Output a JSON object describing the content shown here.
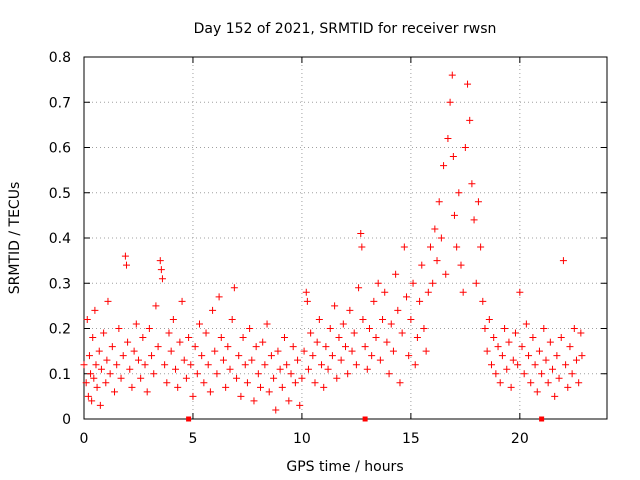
{
  "chart_data": {
    "type": "scatter",
    "title": "Day 152 of 2021, SRMTID for receiver rwsn",
    "xlabel": "GPS time / hours",
    "ylabel": "SRMTID / TECUs",
    "xlim": [
      0,
      24
    ],
    "ylim": [
      0,
      0.8
    ],
    "xticks": [
      0,
      5,
      10,
      15,
      20
    ],
    "xtick_labels": [
      "0",
      "5",
      "10",
      "15",
      "20"
    ],
    "yticks": [
      0,
      0.1,
      0.2,
      0.3,
      0.4,
      0.5,
      0.6,
      0.7,
      0.8
    ],
    "ytick_labels": [
      "0",
      "0.1",
      "0.2",
      "0.3",
      "0.4",
      "0.5",
      "0.6",
      "0.7",
      "0.8"
    ],
    "grid": true,
    "marker": "plus",
    "color": "#ff0000",
    "axis_markers_x": [
      4.8,
      12.9,
      21.0
    ],
    "series": [
      {
        "name": "SRMTID",
        "points": [
          [
            0.0,
            0.12
          ],
          [
            0.1,
            0.08
          ],
          [
            0.15,
            0.22
          ],
          [
            0.2,
            0.05
          ],
          [
            0.25,
            0.14
          ],
          [
            0.3,
            0.1
          ],
          [
            0.35,
            0.04
          ],
          [
            0.4,
            0.18
          ],
          [
            0.45,
            0.09
          ],
          [
            0.5,
            0.24
          ],
          [
            0.55,
            0.12
          ],
          [
            0.6,
            0.07
          ],
          [
            0.7,
            0.15
          ],
          [
            0.75,
            0.03
          ],
          [
            0.8,
            0.11
          ],
          [
            0.9,
            0.19
          ],
          [
            1.0,
            0.08
          ],
          [
            1.05,
            0.13
          ],
          [
            1.1,
            0.26
          ],
          [
            1.2,
            0.1
          ],
          [
            1.3,
            0.16
          ],
          [
            1.4,
            0.06
          ],
          [
            1.5,
            0.12
          ],
          [
            1.6,
            0.2
          ],
          [
            1.7,
            0.09
          ],
          [
            1.8,
            0.14
          ],
          [
            1.9,
            0.36
          ],
          [
            1.95,
            0.34
          ],
          [
            2.0,
            0.17
          ],
          [
            2.1,
            0.11
          ],
          [
            2.2,
            0.07
          ],
          [
            2.3,
            0.15
          ],
          [
            2.4,
            0.21
          ],
          [
            2.5,
            0.13
          ],
          [
            2.6,
            0.09
          ],
          [
            2.7,
            0.18
          ],
          [
            2.8,
            0.12
          ],
          [
            2.9,
            0.06
          ],
          [
            3.0,
            0.2
          ],
          [
            3.1,
            0.14
          ],
          [
            3.2,
            0.1
          ],
          [
            3.3,
            0.25
          ],
          [
            3.4,
            0.16
          ],
          [
            3.5,
            0.35
          ],
          [
            3.55,
            0.33
          ],
          [
            3.6,
            0.31
          ],
          [
            3.7,
            0.12
          ],
          [
            3.8,
            0.08
          ],
          [
            3.9,
            0.19
          ],
          [
            4.0,
            0.15
          ],
          [
            4.1,
            0.22
          ],
          [
            4.2,
            0.11
          ],
          [
            4.3,
            0.07
          ],
          [
            4.4,
            0.17
          ],
          [
            4.5,
            0.26
          ],
          [
            4.6,
            0.13
          ],
          [
            4.7,
            0.09
          ],
          [
            4.8,
            0.18
          ],
          [
            4.9,
            0.12
          ],
          [
            5.0,
            0.05
          ],
          [
            5.1,
            0.16
          ],
          [
            5.2,
            0.1
          ],
          [
            5.3,
            0.21
          ],
          [
            5.4,
            0.14
          ],
          [
            5.5,
            0.08
          ],
          [
            5.6,
            0.19
          ],
          [
            5.7,
            0.12
          ],
          [
            5.8,
            0.06
          ],
          [
            5.9,
            0.24
          ],
          [
            6.0,
            0.15
          ],
          [
            6.1,
            0.1
          ],
          [
            6.2,
            0.27
          ],
          [
            6.3,
            0.18
          ],
          [
            6.4,
            0.13
          ],
          [
            6.5,
            0.07
          ],
          [
            6.6,
            0.16
          ],
          [
            6.7,
            0.11
          ],
          [
            6.8,
            0.22
          ],
          [
            6.9,
            0.29
          ],
          [
            7.0,
            0.09
          ],
          [
            7.1,
            0.14
          ],
          [
            7.2,
            0.05
          ],
          [
            7.3,
            0.18
          ],
          [
            7.4,
            0.12
          ],
          [
            7.5,
            0.08
          ],
          [
            7.6,
            0.2
          ],
          [
            7.7,
            0.13
          ],
          [
            7.8,
            0.04
          ],
          [
            7.9,
            0.16
          ],
          [
            8.0,
            0.1
          ],
          [
            8.1,
            0.07
          ],
          [
            8.2,
            0.17
          ],
          [
            8.3,
            0.12
          ],
          [
            8.4,
            0.21
          ],
          [
            8.5,
            0.06
          ],
          [
            8.6,
            0.14
          ],
          [
            8.7,
            0.09
          ],
          [
            8.8,
            0.02
          ],
          [
            8.9,
            0.15
          ],
          [
            9.0,
            0.11
          ],
          [
            9.1,
            0.07
          ],
          [
            9.2,
            0.18
          ],
          [
            9.3,
            0.12
          ],
          [
            9.4,
            0.04
          ],
          [
            9.5,
            0.1
          ],
          [
            9.6,
            0.16
          ],
          [
            9.7,
            0.08
          ],
          [
            9.8,
            0.13
          ],
          [
            9.9,
            0.03
          ],
          [
            10.0,
            0.09
          ],
          [
            10.1,
            0.15
          ],
          [
            10.2,
            0.28
          ],
          [
            10.25,
            0.26
          ],
          [
            10.3,
            0.11
          ],
          [
            10.4,
            0.19
          ],
          [
            10.5,
            0.14
          ],
          [
            10.6,
            0.08
          ],
          [
            10.7,
            0.17
          ],
          [
            10.8,
            0.22
          ],
          [
            10.9,
            0.12
          ],
          [
            11.0,
            0.07
          ],
          [
            11.1,
            0.16
          ],
          [
            11.2,
            0.11
          ],
          [
            11.3,
            0.2
          ],
          [
            11.4,
            0.14
          ],
          [
            11.5,
            0.25
          ],
          [
            11.6,
            0.09
          ],
          [
            11.7,
            0.18
          ],
          [
            11.8,
            0.13
          ],
          [
            11.9,
            0.21
          ],
          [
            12.0,
            0.16
          ],
          [
            12.1,
            0.1
          ],
          [
            12.2,
            0.24
          ],
          [
            12.3,
            0.15
          ],
          [
            12.4,
            0.19
          ],
          [
            12.5,
            0.12
          ],
          [
            12.6,
            0.29
          ],
          [
            12.7,
            0.41
          ],
          [
            12.75,
            0.38
          ],
          [
            12.8,
            0.22
          ],
          [
            12.9,
            0.16
          ],
          [
            13.0,
            0.11
          ],
          [
            13.1,
            0.2
          ],
          [
            13.2,
            0.14
          ],
          [
            13.3,
            0.26
          ],
          [
            13.4,
            0.18
          ],
          [
            13.5,
            0.3
          ],
          [
            13.6,
            0.13
          ],
          [
            13.7,
            0.22
          ],
          [
            13.8,
            0.28
          ],
          [
            13.9,
            0.17
          ],
          [
            14.0,
            0.1
          ],
          [
            14.1,
            0.21
          ],
          [
            14.2,
            0.15
          ],
          [
            14.3,
            0.32
          ],
          [
            14.4,
            0.24
          ],
          [
            14.5,
            0.08
          ],
          [
            14.6,
            0.19
          ],
          [
            14.7,
            0.38
          ],
          [
            14.8,
            0.27
          ],
          [
            14.9,
            0.14
          ],
          [
            15.0,
            0.22
          ],
          [
            15.1,
            0.3
          ],
          [
            15.2,
            0.12
          ],
          [
            15.3,
            0.18
          ],
          [
            15.4,
            0.26
          ],
          [
            15.5,
            0.34
          ],
          [
            15.6,
            0.2
          ],
          [
            15.7,
            0.15
          ],
          [
            15.8,
            0.28
          ],
          [
            15.9,
            0.38
          ],
          [
            16.0,
            0.3
          ],
          [
            16.1,
            0.42
          ],
          [
            16.2,
            0.35
          ],
          [
            16.3,
            0.48
          ],
          [
            16.4,
            0.4
          ],
          [
            16.5,
            0.56
          ],
          [
            16.6,
            0.32
          ],
          [
            16.7,
            0.62
          ],
          [
            16.8,
            0.7
          ],
          [
            16.9,
            0.76
          ],
          [
            16.95,
            0.58
          ],
          [
            17.0,
            0.45
          ],
          [
            17.1,
            0.38
          ],
          [
            17.2,
            0.5
          ],
          [
            17.3,
            0.34
          ],
          [
            17.4,
            0.28
          ],
          [
            17.5,
            0.6
          ],
          [
            17.6,
            0.74
          ],
          [
            17.7,
            0.66
          ],
          [
            17.8,
            0.52
          ],
          [
            17.9,
            0.44
          ],
          [
            18.0,
            0.3
          ],
          [
            18.1,
            0.48
          ],
          [
            18.2,
            0.38
          ],
          [
            18.3,
            0.26
          ],
          [
            18.4,
            0.2
          ],
          [
            18.5,
            0.15
          ],
          [
            18.6,
            0.22
          ],
          [
            18.7,
            0.12
          ],
          [
            18.8,
            0.18
          ],
          [
            18.9,
            0.1
          ],
          [
            19.0,
            0.16
          ],
          [
            19.1,
            0.08
          ],
          [
            19.2,
            0.14
          ],
          [
            19.3,
            0.2
          ],
          [
            19.4,
            0.11
          ],
          [
            19.5,
            0.17
          ],
          [
            19.6,
            0.07
          ],
          [
            19.7,
            0.13
          ],
          [
            19.8,
            0.19
          ],
          [
            19.9,
            0.12
          ],
          [
            20.0,
            0.28
          ],
          [
            20.1,
            0.16
          ],
          [
            20.2,
            0.1
          ],
          [
            20.3,
            0.21
          ],
          [
            20.4,
            0.14
          ],
          [
            20.5,
            0.08
          ],
          [
            20.6,
            0.18
          ],
          [
            20.7,
            0.12
          ],
          [
            20.8,
            0.06
          ],
          [
            20.9,
            0.15
          ],
          [
            21.0,
            0.1
          ],
          [
            21.1,
            0.2
          ],
          [
            21.2,
            0.13
          ],
          [
            21.3,
            0.08
          ],
          [
            21.4,
            0.17
          ],
          [
            21.5,
            0.11
          ],
          [
            21.6,
            0.05
          ],
          [
            21.7,
            0.14
          ],
          [
            21.8,
            0.09
          ],
          [
            21.9,
            0.18
          ],
          [
            22.0,
            0.35
          ],
          [
            22.1,
            0.12
          ],
          [
            22.2,
            0.07
          ],
          [
            22.3,
            0.16
          ],
          [
            22.4,
            0.1
          ],
          [
            22.5,
            0.2
          ],
          [
            22.6,
            0.13
          ],
          [
            22.7,
            0.08
          ],
          [
            22.8,
            0.19
          ],
          [
            22.85,
            0.14
          ]
        ]
      }
    ]
  }
}
